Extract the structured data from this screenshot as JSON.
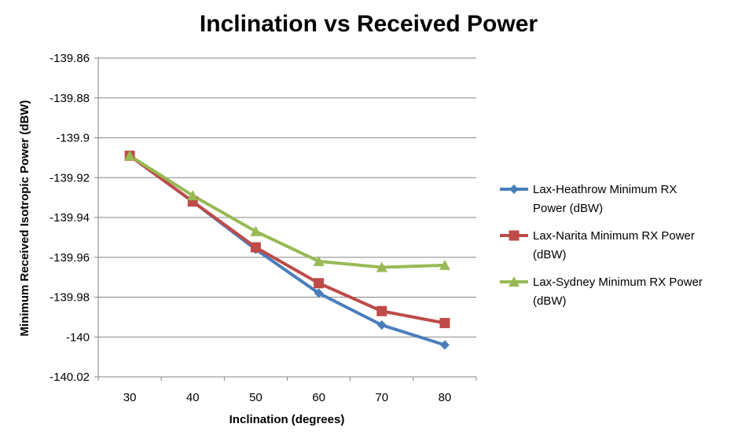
{
  "chart_data": {
    "type": "line",
    "title": "Inclination vs Received Power",
    "xlabel": "Inclination (degrees)",
    "ylabel": "Minimum Received Isotropic Power (dBW)",
    "x": [
      30,
      40,
      50,
      60,
      70,
      80
    ],
    "x_tick_labels": [
      "30",
      "40",
      "50",
      "60",
      "70",
      "80"
    ],
    "ylim": [
      -140.02,
      -139.86
    ],
    "y_ticks": [
      -139.86,
      -139.88,
      -139.9,
      -139.92,
      -139.94,
      -139.96,
      -139.98,
      -140,
      -140.02
    ],
    "y_tick_labels": [
      "-139.86",
      "-139.88",
      "-139.9",
      "-139.92",
      "-139.94",
      "-139.96",
      "-139.98",
      "-140",
      "-140.02"
    ],
    "grid": "horizontal",
    "legend_position": "right",
    "series": [
      {
        "name": "Lax-Heathrow Minimum RX Power (dBW)",
        "legend_lines": [
          "Lax-Heathrow Minimum RX",
          "Power (dBW)"
        ],
        "color": "#4a7ebb",
        "marker": "diamond",
        "values": [
          -139.909,
          -139.932,
          -139.956,
          -139.978,
          -139.994,
          -140.004
        ]
      },
      {
        "name": "Lax-Narita Minimum RX Power (dBW)",
        "legend_lines": [
          "Lax-Narita Minimum RX Power",
          "(dBW)"
        ],
        "color": "#be4b48",
        "marker": "square",
        "values": [
          -139.909,
          -139.932,
          -139.955,
          -139.973,
          -139.987,
          -139.993
        ]
      },
      {
        "name": "Lax-Sydney Minimum RX Power (dBW)",
        "legend_lines": [
          "Lax-Sydney Minimum RX Power",
          "(dBW)"
        ],
        "color": "#98b954",
        "marker": "triangle",
        "values": [
          -139.909,
          -139.929,
          -139.947,
          -139.962,
          -139.965,
          -139.964
        ]
      }
    ]
  }
}
